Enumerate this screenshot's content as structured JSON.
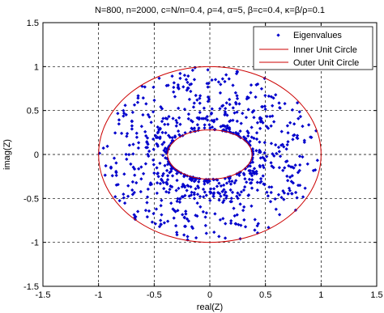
{
  "chart_data": {
    "type": "scatter",
    "title": "N=800, n=2000, c=N/n=0.4, ρ=4, α=5, β=c=0.4, κ=β/ρ=0.1",
    "xlabel": "real(Z)",
    "ylabel": "imag(Z)",
    "xlim": [
      -1.5,
      1.5
    ],
    "ylim": [
      -1.5,
      1.5
    ],
    "xticks": [
      -1.5,
      -1,
      -0.5,
      0,
      0.5,
      1,
      1.5
    ],
    "yticks": [
      -1.5,
      -1,
      -0.5,
      0,
      0.5,
      1,
      1.5
    ],
    "xtick_labels": [
      "-1.5",
      "-1",
      "-0.5",
      "0",
      "0.5",
      "1",
      "1.5"
    ],
    "ytick_labels": [
      "-1.5",
      "-1",
      "-0.5",
      "0",
      "0.5",
      "1",
      "1.5"
    ],
    "grid": true,
    "legend_position": "top-right",
    "series": [
      {
        "name": "Eigenvalues",
        "kind": "scatter",
        "color": "#0000cc",
        "count": 800,
        "distribution": "annulus",
        "inner_radius_x": 0.28,
        "inner_radius_y": 0.28,
        "outer_radius_x": 1.0,
        "outer_radius_y": 1.0
      },
      {
        "name": "Inner Unit Circle",
        "kind": "ellipse",
        "color": "#cc0000",
        "cx": 0,
        "cy": 0,
        "rx": 0.38,
        "ry": 0.28
      },
      {
        "name": "Outer Unit Circle",
        "kind": "ellipse",
        "color": "#cc0000",
        "cx": 0,
        "cy": 0,
        "rx": 1.0,
        "ry": 1.0
      }
    ]
  }
}
